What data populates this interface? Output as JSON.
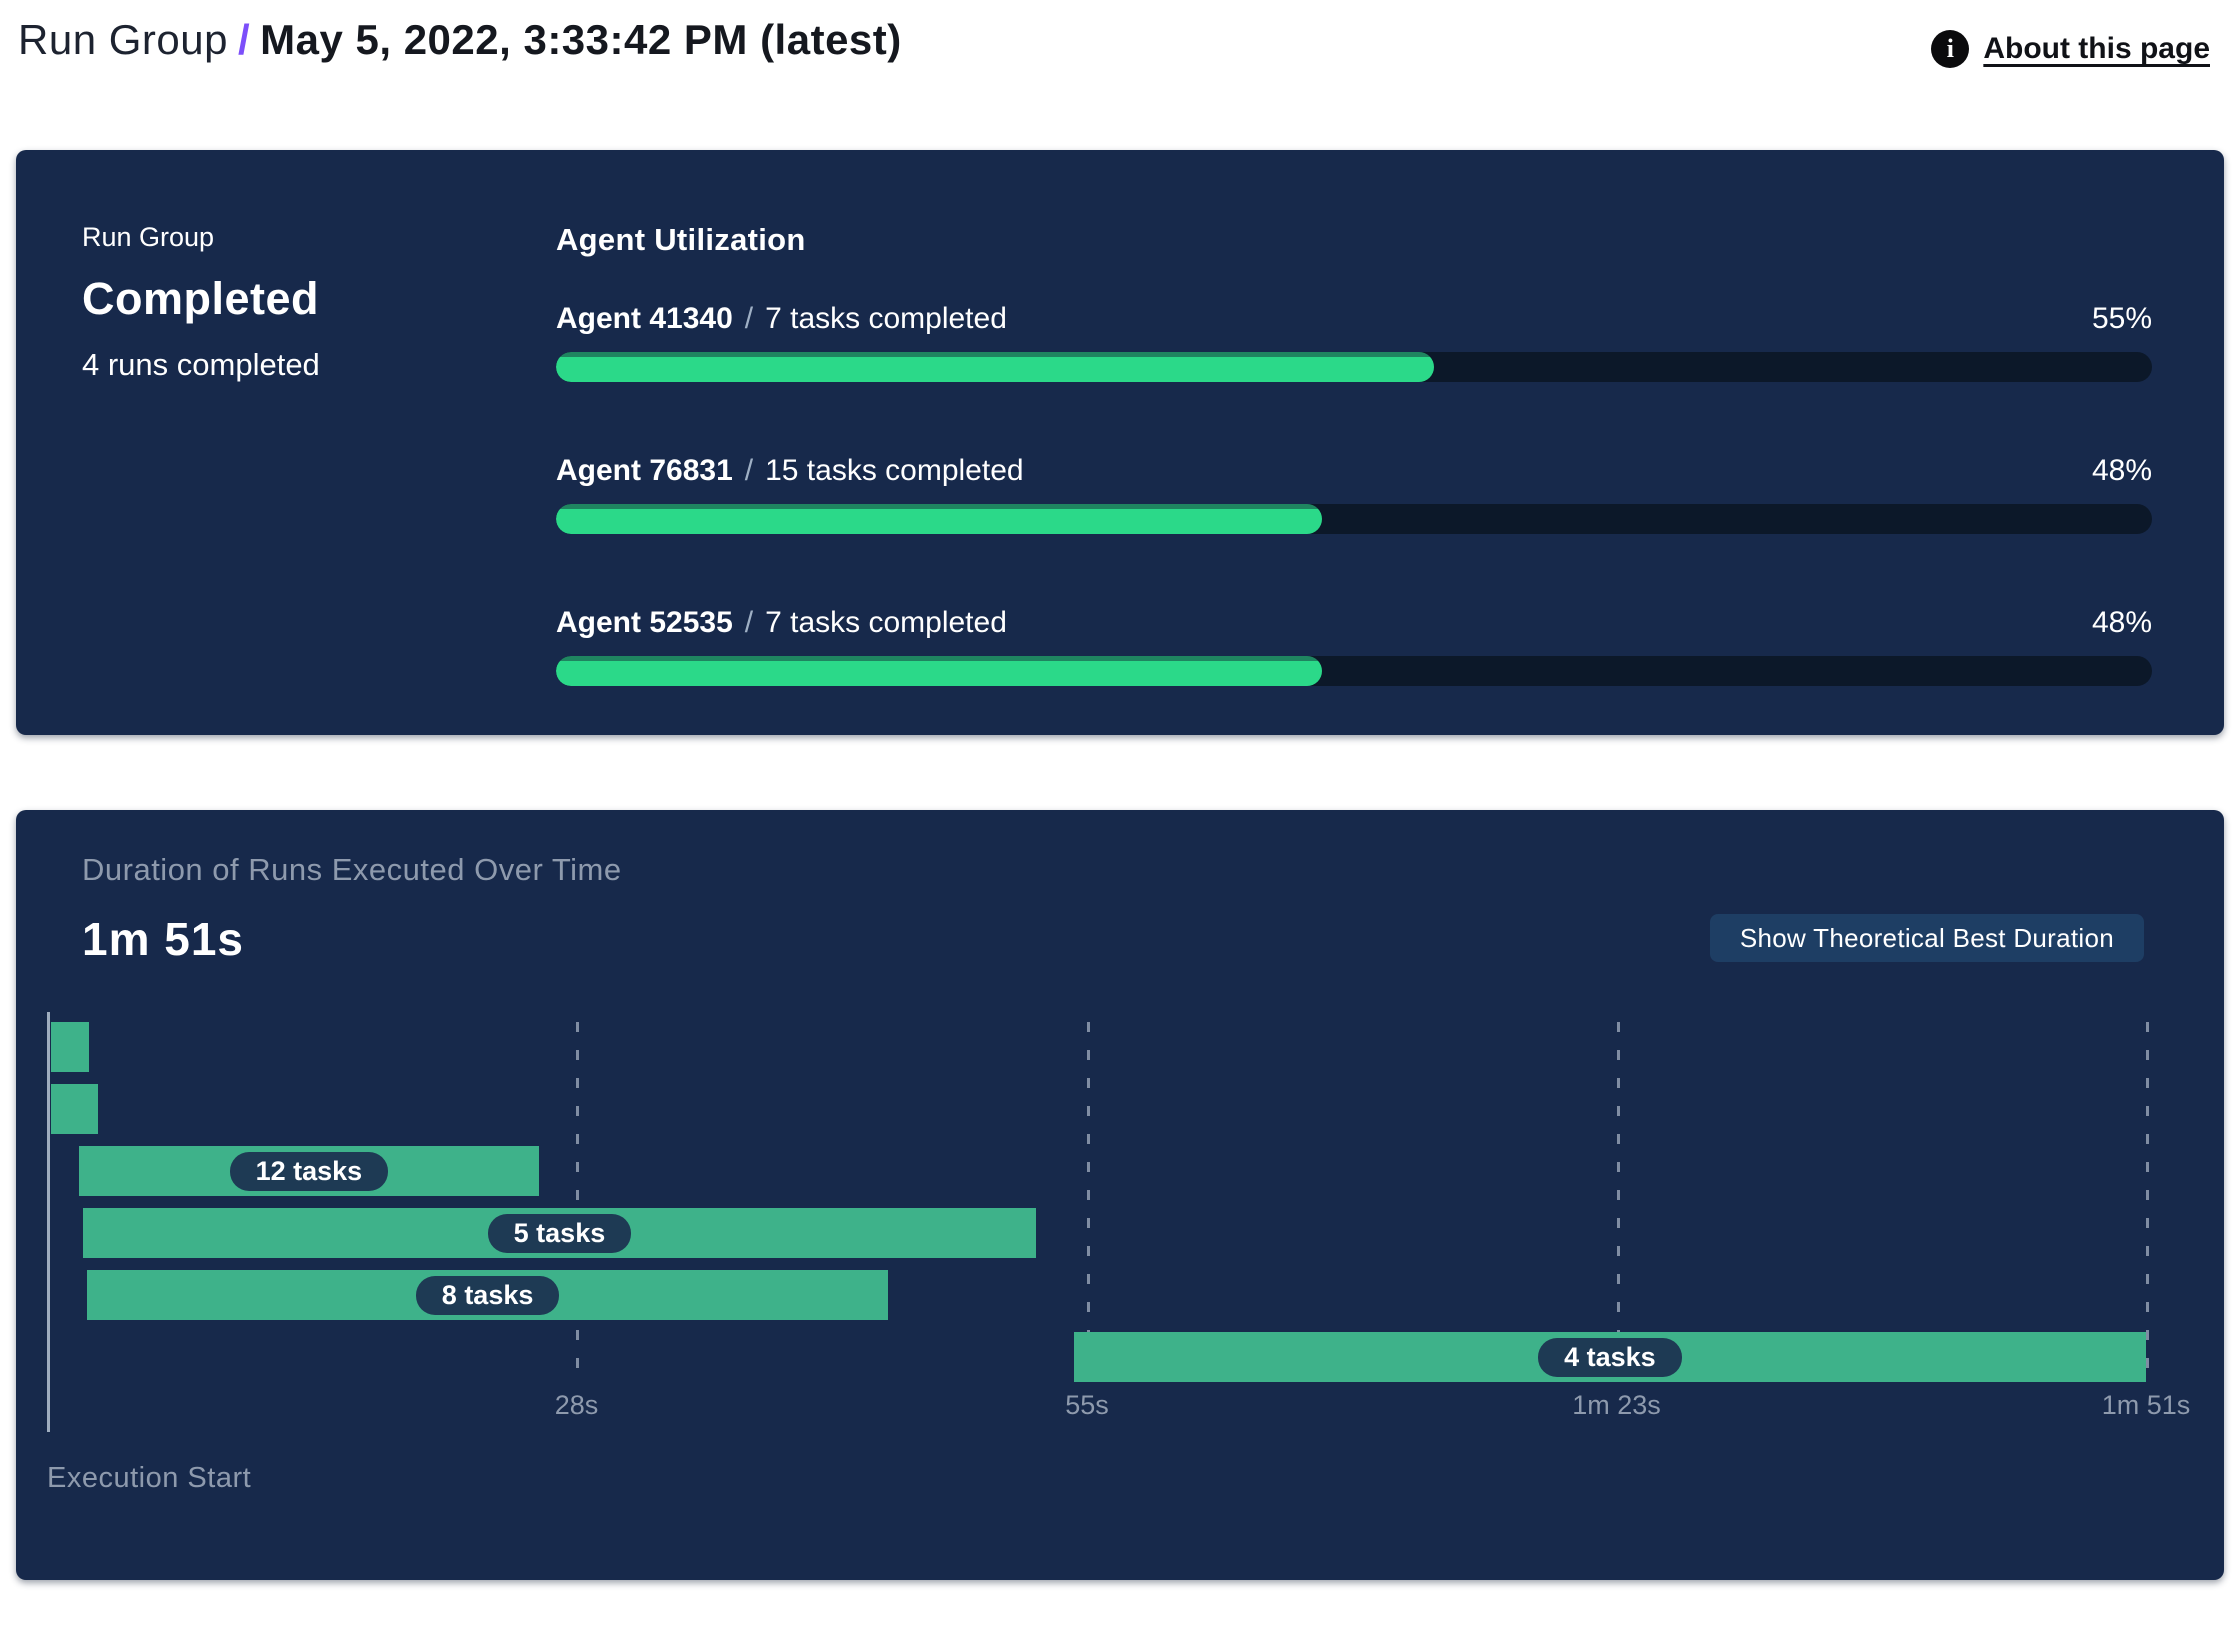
{
  "header": {
    "breadcrumb_root": "Run Group",
    "separator": "/",
    "title": "May 5, 2022, 3:33:42 PM (latest)",
    "about_label": "About this page",
    "info_icon": "info-icon"
  },
  "run_group_panel": {
    "label": "Run Group",
    "status": "Completed",
    "runs_completed": "4 runs completed",
    "agent_utilization": {
      "heading": "Agent Utilization",
      "separator": "/",
      "agents": [
        {
          "name": "Agent 41340",
          "tasks": "7 tasks completed",
          "percent": 55,
          "percent_label": "55%"
        },
        {
          "name": "Agent 76831",
          "tasks": "15 tasks completed",
          "percent": 48,
          "percent_label": "48%"
        },
        {
          "name": "Agent 52535",
          "tasks": "7 tasks completed",
          "percent": 48,
          "percent_label": "48%"
        }
      ]
    }
  },
  "duration_panel": {
    "title": "Duration of Runs Executed Over Time",
    "total_duration": "1m 51s",
    "button_label": "Show Theoretical Best Duration",
    "execution_start_label": "Execution Start"
  },
  "chart_data": {
    "type": "gantt",
    "title": "Duration of Runs Executed Over Time",
    "total_duration_label": "1m 51s",
    "time_axis": {
      "unit": "seconds",
      "range": [
        0,
        111
      ],
      "ticks": [
        {
          "t": 28,
          "label": "28s"
        },
        {
          "t": 55,
          "label": "55s"
        },
        {
          "t": 83,
          "label": "1m 23s"
        },
        {
          "t": 111,
          "label": "1m 51s"
        }
      ]
    },
    "bars": [
      {
        "row": 0,
        "start_s": 0.2,
        "end_s": 2.2,
        "label": ""
      },
      {
        "row": 1,
        "start_s": 0.2,
        "end_s": 2.7,
        "label": ""
      },
      {
        "row": 2,
        "start_s": 1.7,
        "end_s": 26.0,
        "label": "12 tasks"
      },
      {
        "row": 3,
        "start_s": 1.9,
        "end_s": 52.3,
        "label": "5 tasks"
      },
      {
        "row": 4,
        "start_s": 2.1,
        "end_s": 44.5,
        "label": "8 tasks"
      },
      {
        "row": 5,
        "start_s": 54.3,
        "end_s": 111.0,
        "label": "4 tasks"
      }
    ],
    "axis_label": "Execution Start",
    "legend": "none",
    "grid": "vertical-dashed"
  },
  "colors": {
    "panel_background": "#17294b",
    "progress_fill": "#2bd989",
    "progress_fill_edge": "#1f8560",
    "progress_track": "#0c1829",
    "gantt_bar": "#3eb28a",
    "badge_background": "#1e3a54",
    "button_background": "#1e3e64",
    "accent_purple": "#7c4ffa",
    "muted_text": "#8e9aad",
    "axis_line": "#9fadbf"
  }
}
